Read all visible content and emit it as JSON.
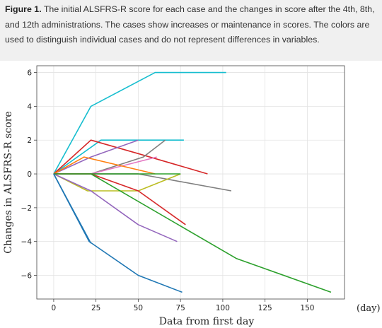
{
  "caption": {
    "label": "Figure 1.",
    "text": "The initial ALSFRS-R score for each case and the changes in score after the 4th, 8th, and 12th administrations. The cases show increases or maintenance in scores. The colors are used to distinguish individual cases and do not represent differences in variables."
  },
  "chart_data": {
    "type": "line",
    "xlabel": "Data from first day",
    "ylabel": "Changes in ALSFRS-R score",
    "x_unit_label": "(day)",
    "xlim": [
      -10,
      172
    ],
    "ylim": [
      -7.4,
      6.4
    ],
    "x_ticks": [
      0,
      25,
      50,
      75,
      100,
      125,
      150
    ],
    "y_ticks": [
      -6,
      -4,
      -2,
      0,
      2,
      4,
      6
    ],
    "grid": true,
    "series": [
      {
        "color": "#17becf",
        "points": [
          [
            0,
            0
          ],
          [
            22,
            4
          ],
          [
            60,
            6
          ],
          [
            102,
            6
          ]
        ]
      },
      {
        "color": "#17becf",
        "points": [
          [
            0,
            0
          ],
          [
            28,
            2
          ],
          [
            50,
            2
          ],
          [
            77,
            2
          ]
        ]
      },
      {
        "color": "#d62728",
        "points": [
          [
            0,
            0
          ],
          [
            22,
            2
          ],
          [
            50,
            1.2
          ],
          [
            91,
            0
          ]
        ]
      },
      {
        "color": "#9467bd",
        "points": [
          [
            0,
            0
          ],
          [
            22,
            1
          ],
          [
            50,
            2
          ]
        ]
      },
      {
        "color": "#7f7f7f",
        "points": [
          [
            0,
            0
          ],
          [
            22,
            0
          ],
          [
            53,
            1
          ],
          [
            66,
            2
          ]
        ]
      },
      {
        "color": "#e377c2",
        "points": [
          [
            0,
            0
          ],
          [
            22,
            0
          ],
          [
            61,
            1
          ]
        ]
      },
      {
        "color": "#ff7f0e",
        "points": [
          [
            0,
            0
          ],
          [
            18,
            1
          ],
          [
            60,
            0
          ]
        ]
      },
      {
        "color": "#8c564b",
        "points": [
          [
            0,
            0
          ],
          [
            22,
            0
          ],
          [
            50,
            0
          ]
        ]
      },
      {
        "color": "#7f7f7f",
        "points": [
          [
            0,
            0
          ],
          [
            50,
            0
          ],
          [
            105,
            -1
          ]
        ]
      },
      {
        "color": "#bcbd22",
        "points": [
          [
            0,
            0
          ],
          [
            20,
            -1
          ],
          [
            50,
            -1
          ],
          [
            75,
            0
          ]
        ]
      },
      {
        "color": "#2ca02c",
        "points": [
          [
            0,
            0
          ],
          [
            75,
            0
          ]
        ]
      },
      {
        "color": "#d62728",
        "points": [
          [
            0,
            0
          ],
          [
            22,
            0
          ],
          [
            50,
            -1
          ],
          [
            78,
            -3
          ]
        ]
      },
      {
        "color": "#9467bd",
        "points": [
          [
            0,
            0
          ],
          [
            22,
            -1
          ],
          [
            50,
            -3
          ],
          [
            73,
            -4
          ]
        ]
      },
      {
        "color": "#2ca02c",
        "points": [
          [
            0,
            0
          ],
          [
            22,
            0
          ],
          [
            108,
            -5
          ],
          [
            164,
            -7
          ]
        ]
      },
      {
        "color": "#1f77b4",
        "points": [
          [
            0,
            0
          ],
          [
            21,
            -4
          ],
          [
            50,
            -6
          ],
          [
            76,
            -7
          ]
        ]
      },
      {
        "color": "#1f77b4",
        "points": [
          [
            0,
            0
          ],
          [
            22,
            -4.1
          ]
        ]
      }
    ]
  }
}
